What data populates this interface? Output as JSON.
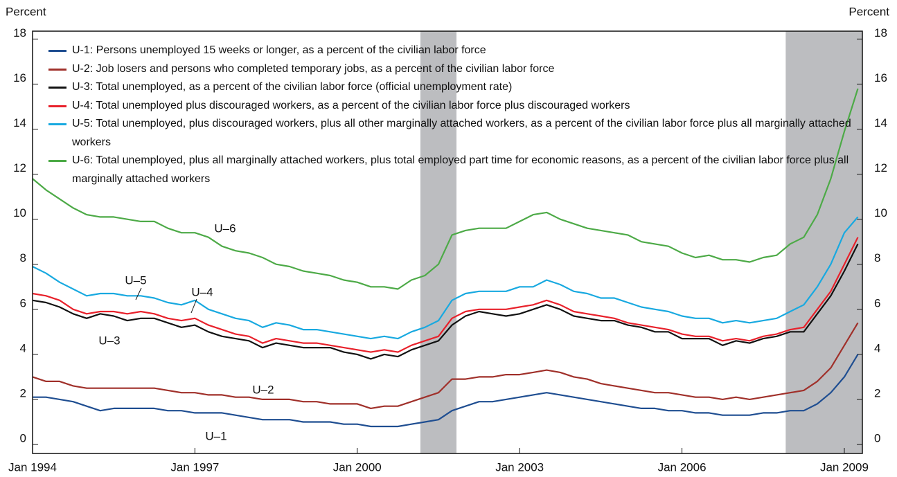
{
  "chart_data": {
    "type": "line",
    "y_label": "Percent",
    "y2_label": "Percent",
    "x": [
      "1994-01",
      "1994-04",
      "1994-07",
      "1994-10",
      "1995-01",
      "1995-04",
      "1995-07",
      "1995-10",
      "1996-01",
      "1996-04",
      "1996-07",
      "1996-10",
      "1997-01",
      "1997-04",
      "1997-07",
      "1997-10",
      "1998-01",
      "1998-04",
      "1998-07",
      "1998-10",
      "1999-01",
      "1999-04",
      "1999-07",
      "1999-10",
      "2000-01",
      "2000-04",
      "2000-07",
      "2000-10",
      "2001-01",
      "2001-04",
      "2001-07",
      "2001-10",
      "2002-01",
      "2002-04",
      "2002-07",
      "2002-10",
      "2003-01",
      "2003-04",
      "2003-07",
      "2003-10",
      "2004-01",
      "2004-04",
      "2004-07",
      "2004-10",
      "2005-01",
      "2005-04",
      "2005-07",
      "2005-10",
      "2006-01",
      "2006-04",
      "2006-07",
      "2006-10",
      "2007-01",
      "2007-04",
      "2007-07",
      "2007-10",
      "2008-01",
      "2008-04",
      "2008-07",
      "2008-10",
      "2009-01",
      "2009-04"
    ],
    "xlim": [
      "1994-01",
      "2009-05"
    ],
    "xticks": [
      {
        "value": "1994-01",
        "label": "Jan 1994"
      },
      {
        "value": "1997-01",
        "label": "Jan 1997"
      },
      {
        "value": "2000-01",
        "label": "Jan 2000"
      },
      {
        "value": "2003-01",
        "label": "Jan 2003"
      },
      {
        "value": "2006-01",
        "label": "Jan 2006"
      },
      {
        "value": "2009-01",
        "label": "Jan 2009"
      }
    ],
    "ylim": [
      -0.4,
      18.35
    ],
    "yticks": [
      0,
      2,
      4,
      6,
      8,
      10,
      12,
      14,
      16,
      18
    ],
    "y2lim": [
      -0.4,
      18.35
    ],
    "y2ticks": [
      0,
      2,
      4,
      6,
      8,
      10,
      12,
      14,
      16,
      18
    ],
    "recessions": [
      [
        "2001-03",
        "2001-11"
      ],
      [
        "2007-12",
        "2009-05"
      ]
    ],
    "recession_color": "#bcbdc0",
    "legend": "upper left",
    "series": [
      {
        "name": "U-1: Persons unemployed 15 weeks or longer, as a percent of the civilian labor force",
        "color": "#1f4e91",
        "values": [
          2.1,
          2.1,
          2.0,
          1.9,
          1.7,
          1.5,
          1.6,
          1.6,
          1.6,
          1.6,
          1.5,
          1.5,
          1.4,
          1.4,
          1.4,
          1.3,
          1.2,
          1.1,
          1.1,
          1.1,
          1.0,
          1.0,
          1.0,
          0.9,
          0.9,
          0.8,
          0.8,
          0.8,
          0.9,
          1.0,
          1.1,
          1.5,
          1.7,
          1.9,
          1.9,
          2.0,
          2.1,
          2.2,
          2.3,
          2.2,
          2.1,
          2.0,
          1.9,
          1.8,
          1.7,
          1.6,
          1.6,
          1.5,
          1.5,
          1.4,
          1.4,
          1.3,
          1.3,
          1.3,
          1.4,
          1.4,
          1.5,
          1.5,
          1.8,
          2.3,
          3.0,
          4.0
        ]
      },
      {
        "name": "U-2: Job losers and persons who completed temporary jobs, as a percent of the civilian labor force",
        "color": "#a0302a",
        "values": [
          3.0,
          2.8,
          2.8,
          2.6,
          2.5,
          2.5,
          2.5,
          2.5,
          2.5,
          2.5,
          2.4,
          2.3,
          2.3,
          2.2,
          2.2,
          2.1,
          2.1,
          2.0,
          2.0,
          2.0,
          1.9,
          1.9,
          1.8,
          1.8,
          1.8,
          1.6,
          1.7,
          1.7,
          1.9,
          2.1,
          2.3,
          2.9,
          2.9,
          3.0,
          3.0,
          3.1,
          3.1,
          3.2,
          3.3,
          3.2,
          3.0,
          2.9,
          2.7,
          2.6,
          2.5,
          2.4,
          2.3,
          2.3,
          2.2,
          2.1,
          2.1,
          2.0,
          2.1,
          2.0,
          2.1,
          2.2,
          2.3,
          2.4,
          2.8,
          3.4,
          4.4,
          5.4
        ]
      },
      {
        "name": "U-3: Total unemployed, as a percent of the civilian labor force (official unemployment rate)",
        "color": "#111111",
        "values": [
          6.4,
          6.3,
          6.1,
          5.8,
          5.6,
          5.8,
          5.7,
          5.5,
          5.6,
          5.6,
          5.4,
          5.2,
          5.3,
          5.0,
          4.8,
          4.7,
          4.6,
          4.3,
          4.5,
          4.4,
          4.3,
          4.3,
          4.3,
          4.1,
          4.0,
          3.8,
          4.0,
          3.9,
          4.2,
          4.4,
          4.6,
          5.3,
          5.7,
          5.9,
          5.8,
          5.7,
          5.8,
          6.0,
          6.2,
          6.0,
          5.7,
          5.6,
          5.5,
          5.5,
          5.3,
          5.2,
          5.0,
          5.0,
          4.7,
          4.7,
          4.7,
          4.4,
          4.6,
          4.5,
          4.7,
          4.8,
          5.0,
          5.0,
          5.8,
          6.6,
          7.7,
          8.9
        ]
      },
      {
        "name": "U-4: Total unemployed plus discouraged workers, as a percent of the civilian labor force plus discouraged workers",
        "color": "#e8212b",
        "values": [
          6.7,
          6.6,
          6.4,
          6.0,
          5.8,
          5.9,
          5.9,
          5.8,
          5.9,
          5.8,
          5.6,
          5.5,
          5.6,
          5.3,
          5.1,
          4.9,
          4.8,
          4.5,
          4.7,
          4.6,
          4.5,
          4.5,
          4.4,
          4.3,
          4.2,
          4.1,
          4.2,
          4.1,
          4.4,
          4.6,
          4.8,
          5.6,
          5.9,
          6.0,
          6.0,
          6.0,
          6.1,
          6.2,
          6.4,
          6.2,
          5.9,
          5.8,
          5.7,
          5.6,
          5.4,
          5.3,
          5.2,
          5.1,
          4.9,
          4.8,
          4.8,
          4.6,
          4.7,
          4.6,
          4.8,
          4.9,
          5.1,
          5.2,
          6.0,
          6.8,
          8.0,
          9.2
        ]
      },
      {
        "name": "U-5: Total unemployed, plus discouraged workers, plus all other marginally attached workers, as a percent of the civilian labor force plus all marginally attached workers",
        "color": "#18a9e0",
        "values": [
          7.9,
          7.6,
          7.2,
          6.9,
          6.6,
          6.7,
          6.7,
          6.6,
          6.6,
          6.5,
          6.3,
          6.2,
          6.4,
          6.0,
          5.8,
          5.6,
          5.5,
          5.2,
          5.4,
          5.3,
          5.1,
          5.1,
          5.0,
          4.9,
          4.8,
          4.7,
          4.8,
          4.7,
          5.0,
          5.2,
          5.5,
          6.4,
          6.7,
          6.8,
          6.8,
          6.8,
          7.0,
          7.0,
          7.3,
          7.1,
          6.8,
          6.7,
          6.5,
          6.5,
          6.3,
          6.1,
          6.0,
          5.9,
          5.7,
          5.6,
          5.6,
          5.4,
          5.5,
          5.4,
          5.5,
          5.6,
          5.9,
          6.2,
          7.0,
          8.0,
          9.4,
          10.1
        ]
      },
      {
        "name": "U-6: Total unemployed, plus all marginally attached workers, plus total employed part time for economic reasons, as a percent of the civilian labor force plus all marginally attached workers",
        "color": "#4daa47",
        "values": [
          11.8,
          11.3,
          10.9,
          10.5,
          10.2,
          10.1,
          10.1,
          10.0,
          9.9,
          9.9,
          9.6,
          9.4,
          9.4,
          9.2,
          8.8,
          8.6,
          8.5,
          8.3,
          8.0,
          7.9,
          7.7,
          7.6,
          7.5,
          7.3,
          7.2,
          7.0,
          7.0,
          6.9,
          7.3,
          7.5,
          8.0,
          9.3,
          9.5,
          9.6,
          9.6,
          9.6,
          9.9,
          10.2,
          10.3,
          10.0,
          9.8,
          9.6,
          9.5,
          9.4,
          9.3,
          9.0,
          8.9,
          8.8,
          8.5,
          8.3,
          8.4,
          8.2,
          8.2,
          8.1,
          8.3,
          8.4,
          8.9,
          9.2,
          10.2,
          11.8,
          13.9,
          15.8
        ]
      }
    ],
    "annotations": [
      "U–6",
      "U–5",
      "U–4",
      "U–3",
      "U–2",
      "U–1"
    ]
  }
}
